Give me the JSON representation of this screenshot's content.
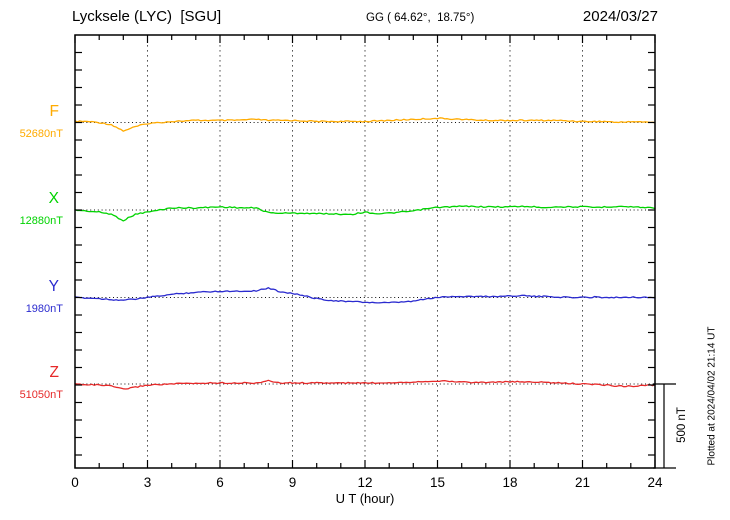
{
  "header": {
    "station_title": "Lycksele (LYC)  [SGU]",
    "coords": "GG ( 64.62°,  18.75°)",
    "date": "2024/03/27"
  },
  "side": {
    "scale_label": "500 nT",
    "plotted_at": "Plotted at 2024/04/02 21:14 UT"
  },
  "channels": [
    {
      "label": "F",
      "value_label": "52680nT",
      "color": "#FFAB00"
    },
    {
      "label": "X",
      "value_label": "12880nT",
      "color": "#00D300"
    },
    {
      "label": "Y",
      "value_label": "1980nT",
      "color": "#2B2BCF"
    },
    {
      "label": "Z",
      "value_label": "51050nT",
      "color": "#E62929"
    }
  ],
  "chart_data": {
    "type": "line",
    "title": "Lycksele (LYC) [SGU] magnetogram 2024/03/27",
    "xlabel": "U T (hour)",
    "x_range": [
      0,
      24
    ],
    "x_ticks": [
      0,
      3,
      6,
      9,
      12,
      15,
      18,
      21,
      24
    ],
    "x_step_hours": 0.5,
    "grid": "dotted vertical gridlines every 3 h, dotted horizontal baseline per channel",
    "scale_bar": {
      "label": "500 nT",
      "nT": 500
    },
    "series": [
      {
        "name": "F",
        "baseline_nT": 52680,
        "color": "#FFAB00",
        "offsets_nT": [
          6,
          6,
          0,
          -12,
          -48,
          -24,
          -6,
          0,
          6,
          9,
          12,
          12,
          12,
          12,
          15,
          18,
          12,
          12,
          12,
          9,
          6,
          6,
          6,
          6,
          6,
          9,
          12,
          15,
          18,
          21,
          24,
          21,
          18,
          15,
          12,
          12,
          12,
          12,
          12,
          12,
          12,
          9,
          6,
          6,
          6,
          0,
          6,
          3,
          0
        ]
      },
      {
        "name": "X",
        "baseline_nT": 12880,
        "color": "#00D300",
        "offsets_nT": [
          0,
          -6,
          -12,
          -24,
          -60,
          -24,
          -12,
          0,
          12,
          12,
          12,
          15,
          18,
          15,
          12,
          12,
          -15,
          -18,
          -18,
          -18,
          -21,
          -21,
          -24,
          -24,
          -12,
          -21,
          -18,
          -12,
          -6,
          6,
          15,
          18,
          21,
          21,
          18,
          18,
          18,
          21,
          18,
          15,
          18,
          18,
          18,
          15,
          18,
          21,
          18,
          15,
          12
        ]
      },
      {
        "name": "Y",
        "baseline_nT": 1980,
        "color": "#2B2BCF",
        "offsets_nT": [
          0,
          -3,
          -6,
          -12,
          -15,
          -9,
          0,
          9,
          18,
          24,
          30,
          33,
          36,
          36,
          36,
          39,
          54,
          33,
          24,
          9,
          -6,
          -15,
          -21,
          -24,
          -27,
          -30,
          -30,
          -27,
          -21,
          -9,
          0,
          6,
          6,
          6,
          6,
          6,
          9,
          12,
          6,
          6,
          3,
          0,
          0,
          3,
          0,
          0,
          3,
          0,
          0
        ]
      },
      {
        "name": "Z",
        "baseline_nT": 51050,
        "color": "#E62929",
        "offsets_nT": [
          0,
          -3,
          -6,
          -12,
          -30,
          -18,
          -6,
          -3,
          0,
          3,
          3,
          6,
          6,
          6,
          6,
          6,
          18,
          6,
          6,
          6,
          6,
          6,
          6,
          6,
          6,
          6,
          9,
          9,
          12,
          15,
          18,
          15,
          12,
          9,
          9,
          12,
          12,
          12,
          12,
          9,
          6,
          3,
          0,
          -3,
          -6,
          -12,
          -12,
          -9,
          -6
        ]
      }
    ]
  }
}
